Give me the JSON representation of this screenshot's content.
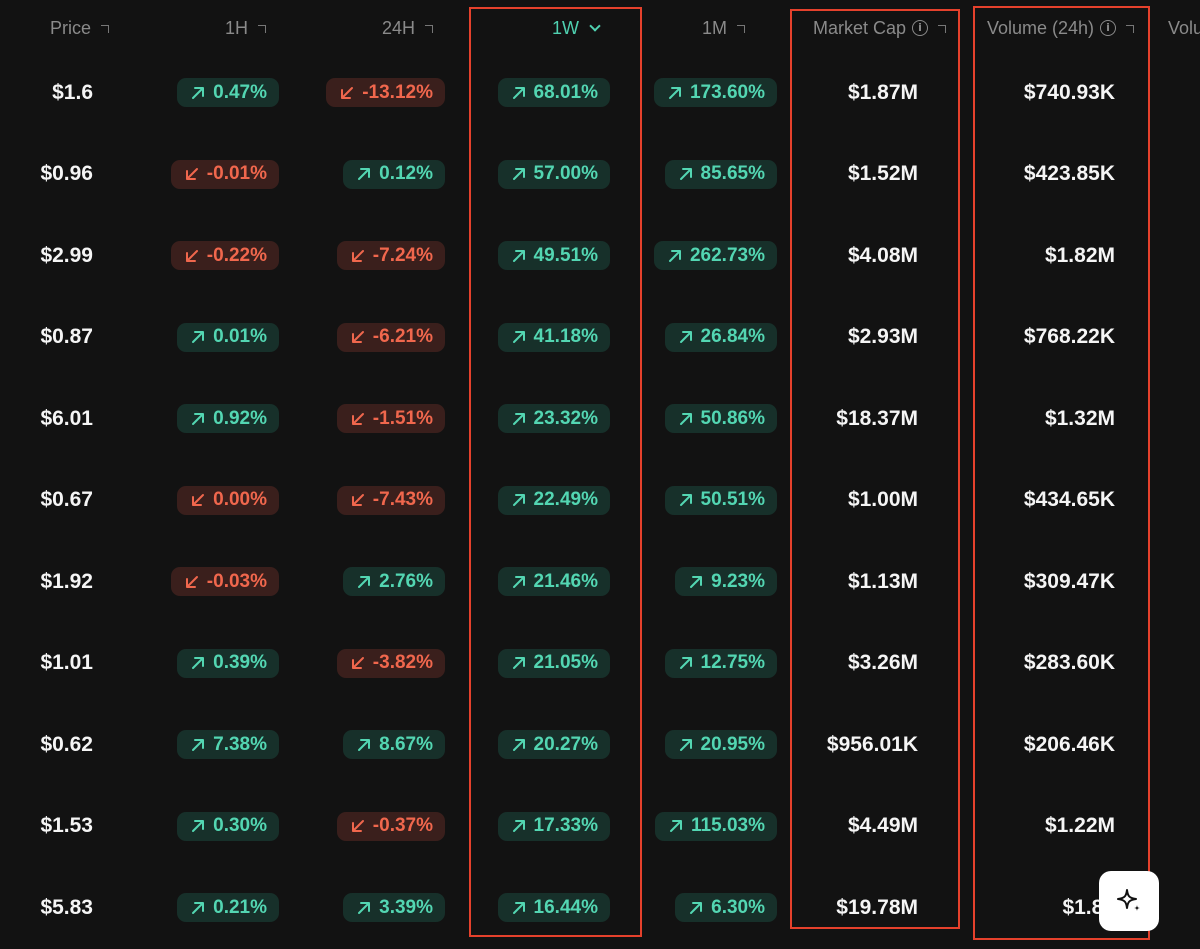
{
  "headers": {
    "price": "Price",
    "h1": "1H",
    "h24": "24H",
    "w1": "1W",
    "m1": "1M",
    "mcap": "Market Cap",
    "vol24": "Volume (24h)",
    "vol_partial": "Volu"
  },
  "info_glyph": "i",
  "active_sort_column": "1W",
  "colors": {
    "positive": "#53d6b2",
    "negative": "#f0674d",
    "highlight": "#e5412c"
  },
  "rows": [
    {
      "price": "$1.6",
      "h1": "0.47%",
      "h1_dir": "up",
      "h24": "-13.12%",
      "h24_dir": "down",
      "w1": "68.01%",
      "w1_dir": "up",
      "m1": "173.60%",
      "m1_dir": "up",
      "mcap": "$1.87M",
      "vol": "$740.93K"
    },
    {
      "price": "$0.96",
      "h1": "-0.01%",
      "h1_dir": "down",
      "h24": "0.12%",
      "h24_dir": "up",
      "w1": "57.00%",
      "w1_dir": "up",
      "m1": "85.65%",
      "m1_dir": "up",
      "mcap": "$1.52M",
      "vol": "$423.85K"
    },
    {
      "price": "$2.99",
      "h1": "-0.22%",
      "h1_dir": "down",
      "h24": "-7.24%",
      "h24_dir": "down",
      "w1": "49.51%",
      "w1_dir": "up",
      "m1": "262.73%",
      "m1_dir": "up",
      "mcap": "$4.08M",
      "vol": "$1.82M"
    },
    {
      "price": "$0.87",
      "h1": "0.01%",
      "h1_dir": "up",
      "h24": "-6.21%",
      "h24_dir": "down",
      "w1": "41.18%",
      "w1_dir": "up",
      "m1": "26.84%",
      "m1_dir": "up",
      "mcap": "$2.93M",
      "vol": "$768.22K"
    },
    {
      "price": "$6.01",
      "h1": "0.92%",
      "h1_dir": "up",
      "h24": "-1.51%",
      "h24_dir": "down",
      "w1": "23.32%",
      "w1_dir": "up",
      "m1": "50.86%",
      "m1_dir": "up",
      "mcap": "$18.37M",
      "vol": "$1.32M"
    },
    {
      "price": "$0.67",
      "h1": "0.00%",
      "h1_dir": "down",
      "h24": "-7.43%",
      "h24_dir": "down",
      "w1": "22.49%",
      "w1_dir": "up",
      "m1": "50.51%",
      "m1_dir": "up",
      "mcap": "$1.00M",
      "vol": "$434.65K"
    },
    {
      "price": "$1.92",
      "h1": "-0.03%",
      "h1_dir": "down",
      "h24": "2.76%",
      "h24_dir": "up",
      "w1": "21.46%",
      "w1_dir": "up",
      "m1": "9.23%",
      "m1_dir": "up",
      "mcap": "$1.13M",
      "vol": "$309.47K"
    },
    {
      "price": "$1.01",
      "h1": "0.39%",
      "h1_dir": "up",
      "h24": "-3.82%",
      "h24_dir": "down",
      "w1": "21.05%",
      "w1_dir": "up",
      "m1": "12.75%",
      "m1_dir": "up",
      "mcap": "$3.26M",
      "vol": "$283.60K"
    },
    {
      "price": "$0.62",
      "h1": "7.38%",
      "h1_dir": "up",
      "h24": "8.67%",
      "h24_dir": "up",
      "w1": "20.27%",
      "w1_dir": "up",
      "m1": "20.95%",
      "m1_dir": "up",
      "mcap": "$956.01K",
      "vol": "$206.46K"
    },
    {
      "price": "$1.53",
      "h1": "0.30%",
      "h1_dir": "up",
      "h24": "-0.37%",
      "h24_dir": "down",
      "w1": "17.33%",
      "w1_dir": "up",
      "m1": "115.03%",
      "m1_dir": "up",
      "mcap": "$4.49M",
      "vol": "$1.22M"
    },
    {
      "price": "$5.83",
      "h1": "0.21%",
      "h1_dir": "up",
      "h24": "3.39%",
      "h24_dir": "up",
      "w1": "16.44%",
      "w1_dir": "up",
      "m1": "6.30%",
      "m1_dir": "up",
      "mcap": "$19.78M",
      "vol": "$1.86"
    }
  ],
  "ai_button_icon": "sparkle-icon"
}
